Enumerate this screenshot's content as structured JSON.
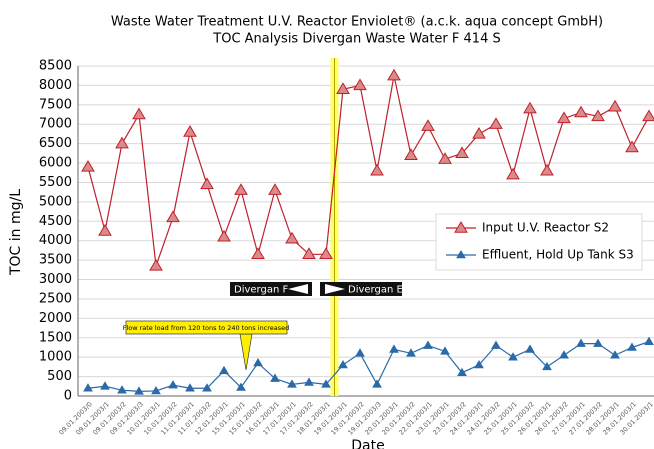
{
  "chart_data": {
    "type": "line",
    "title": "Waste Water Treatment U.V. Reactor Enviolet® (a.c.k. aqua concept GmbH)",
    "subtitle": "TOC Analysis Divergan Waste Water F 414 S",
    "x_label": "Date",
    "y_label": "TOC in mg/L",
    "categories": [
      "09.01.2003/0",
      "09.01.2003/1",
      "09.01.2003/2",
      "09.01.2003/3",
      "10.01.2003/1",
      "10.01.2003/2",
      "11.01.2003/1",
      "11.01.2003/2",
      "12.01.2003/1",
      "15.01.2003/1",
      "15.01.2003/2",
      "16.01.2003/1",
      "17.01.2003/1",
      "17.01.2003/2",
      "18.01.2003/1",
      "19.01.2003/1",
      "19.01.2003/2",
      "19.01.2003/3",
      "20.01.2003/1",
      "20.01.2003/2",
      "22.01.2003/1",
      "23.01.2003/1",
      "23.01.2003/2",
      "24.01.2003/1",
      "24.01.2003/2",
      "25.01.2003/1",
      "25.01.2003/2",
      "26.01.2003/1",
      "26.01.2003/2",
      "27.01.2003/1",
      "27.01.2003/2",
      "28.01.2003/1",
      "29.01.2003/1",
      "30.01.2003/1"
    ],
    "series": [
      {
        "name": "Input U.V. Reactor S2",
        "color": "#c0202a",
        "values": [
          5900,
          4250,
          6500,
          7250,
          3350,
          4600,
          6800,
          5450,
          4100,
          5300,
          3650,
          5300,
          4050,
          3650,
          3650,
          7900,
          8000,
          5800,
          8250,
          6200,
          6950,
          6100,
          6250,
          6750,
          7000,
          5700,
          7400,
          5800,
          7150,
          7300,
          7200,
          7450,
          6400,
          7200
        ]
      },
      {
        "name": "Effluent, Hold Up Tank S3",
        "color": "#2a6aa8",
        "values": [
          200,
          250,
          150,
          120,
          130,
          280,
          200,
          200,
          650,
          220,
          850,
          450,
          300,
          350,
          300,
          800,
          1100,
          300,
          1200,
          1100,
          1300,
          1150,
          600,
          800,
          1300,
          1000,
          1200,
          750,
          1050,
          1350,
          1350,
          1050,
          1250,
          1400
        ]
      }
    ],
    "ylim": [
      0,
      8500
    ],
    "yticks": [
      0,
      500,
      1000,
      1500,
      2000,
      2500,
      3000,
      3500,
      4000,
      4500,
      5000,
      5500,
      6000,
      6500,
      7000,
      7500,
      8000,
      8500
    ],
    "grid": true,
    "legend": "right",
    "annotations": [
      "Divergan F",
      "Divergan EF",
      "Flow rate load from 120 tons to 240 tons increased"
    ]
  }
}
